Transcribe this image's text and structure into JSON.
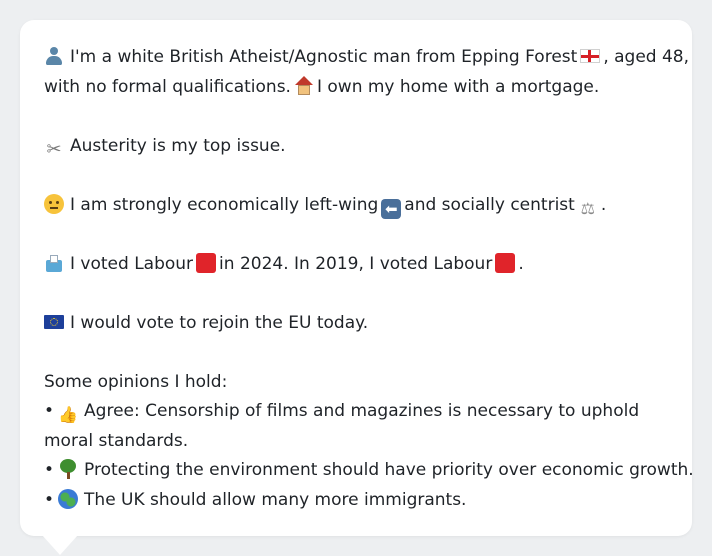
{
  "profile": {
    "intro_line1_a": "I'm a white British Atheist/Agnostic man from Epping Forest",
    "intro_line1_b": ", aged 48,",
    "intro_line2_a": "with no formal qualifications.",
    "intro_line2_b": "I own my home with a mortgage.",
    "top_issue": "Austerity is my top issue.",
    "ideology_a": "I am strongly economically left-wing",
    "ideology_b": "and socially centrist",
    "ideology_c": ".",
    "vote_a": "I voted Labour",
    "vote_b": "in 2024. In 2019, I voted Labour",
    "vote_c": ".",
    "eu": "I would vote to rejoin the EU today.",
    "opinions_heading": "Some opinions I hold:",
    "opinions": [
      "Agree: Censorship of films and magazines is necessary to uphold moral standards.",
      "Protecting the environment should have priority over economic growth.",
      "The UK should allow many more immigrants."
    ],
    "bullet": "•"
  },
  "icons": {
    "person": "person-icon",
    "england_flag": "england-flag-icon",
    "house": "house-icon",
    "scissors": "scissors-icon",
    "thinking": "thinking-face-icon",
    "left_arrow": "left-arrow-icon",
    "scales": "scales-icon",
    "ballot": "ballot-box-icon",
    "labour_square": "red-square-icon",
    "eu_flag": "eu-flag-icon",
    "thumbs_up": "thumbs-up-icon",
    "tree": "tree-icon",
    "globe": "globe-icon"
  },
  "colors": {
    "labour_red": "#e0242a",
    "text": "#1f2328",
    "background": "#edeff1",
    "card": "#ffffff"
  }
}
